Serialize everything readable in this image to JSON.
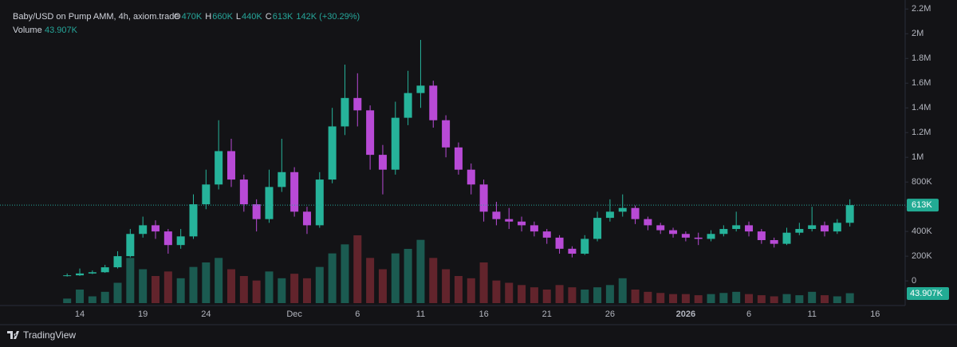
{
  "chart_data": {
    "type": "candlestick",
    "title": "Baby/USD on Pump AMM, 4h, axiom.trade",
    "ohlc_legend": [
      {
        "label": "O",
        "value": "470K"
      },
      {
        "label": "H",
        "value": "660K"
      },
      {
        "label": "L",
        "value": "440K"
      },
      {
        "label": "C",
        "value": "613K"
      }
    ],
    "change_label": "142K (+30.29%)",
    "volume_title": "Volume",
    "volume_label": "43.907K",
    "last_price_label": "613K",
    "brand": "TradingView",
    "up_color": "#26b39a",
    "down_color": "#b84ad6",
    "categories": [
      null,
      "14",
      null,
      null,
      null,
      null,
      "19",
      null,
      null,
      null,
      null,
      "24",
      null,
      null,
      null,
      null,
      null,
      null,
      "Dec",
      null,
      null,
      null,
      null,
      "6",
      null,
      null,
      null,
      null,
      "11",
      null,
      null,
      null,
      null,
      "16",
      null,
      null,
      null,
      null,
      "21",
      null,
      null,
      null,
      null,
      "26",
      null,
      null,
      null,
      null,
      null,
      "2026",
      null,
      null,
      null,
      null,
      "6",
      null,
      null,
      null,
      null,
      "11",
      null,
      null,
      null,
      null,
      "16"
    ],
    "open": [
      40000,
      45000,
      60000,
      70000,
      110000,
      200000,
      380000,
      450000,
      400000,
      290000,
      360000,
      620000,
      780000,
      1050000,
      820000,
      620000,
      500000,
      760000,
      880000,
      560000,
      450000,
      820000,
      1250000,
      1480000,
      1380000,
      1020000,
      900000,
      1320000,
      1520000,
      1580000,
      1300000,
      1080000,
      900000,
      780000,
      560000,
      500000,
      480000,
      450000,
      400000,
      350000,
      260000,
      220000,
      340000,
      510000,
      560000,
      590000,
      500000,
      450000,
      410000,
      380000,
      350000,
      340000,
      380000,
      420000,
      450000,
      400000,
      330000,
      300000,
      390000,
      420000,
      450000,
      400000,
      470000,
      null,
      null
    ],
    "high": [
      60000,
      100000,
      85000,
      130000,
      240000,
      420000,
      520000,
      490000,
      420000,
      420000,
      700000,
      900000,
      1300000,
      1150000,
      860000,
      660000,
      900000,
      1150000,
      920000,
      600000,
      880000,
      1400000,
      1750000,
      1680000,
      1420000,
      1100000,
      1450000,
      1700000,
      1950000,
      1620000,
      1340000,
      1120000,
      950000,
      820000,
      640000,
      590000,
      520000,
      480000,
      420000,
      370000,
      280000,
      370000,
      560000,
      660000,
      700000,
      610000,
      520000,
      470000,
      430000,
      400000,
      390000,
      410000,
      450000,
      560000,
      480000,
      420000,
      350000,
      430000,
      470000,
      600000,
      480000,
      500000,
      660000,
      null,
      null
    ],
    "low": [
      35000,
      40000,
      55000,
      65000,
      100000,
      190000,
      350000,
      340000,
      220000,
      260000,
      340000,
      580000,
      740000,
      760000,
      560000,
      400000,
      470000,
      720000,
      520000,
      380000,
      430000,
      790000,
      1180000,
      1250000,
      900000,
      700000,
      860000,
      1260000,
      1400000,
      1240000,
      1000000,
      860000,
      700000,
      480000,
      450000,
      420000,
      400000,
      360000,
      300000,
      220000,
      190000,
      210000,
      320000,
      480000,
      520000,
      460000,
      410000,
      380000,
      350000,
      320000,
      290000,
      320000,
      360000,
      400000,
      360000,
      300000,
      270000,
      290000,
      370000,
      400000,
      360000,
      380000,
      440000,
      null,
      null
    ],
    "close": [
      45000,
      60000,
      70000,
      110000,
      200000,
      380000,
      450000,
      400000,
      290000,
      360000,
      620000,
      780000,
      1050000,
      820000,
      620000,
      500000,
      760000,
      880000,
      560000,
      450000,
      820000,
      1250000,
      1480000,
      1380000,
      1020000,
      900000,
      1320000,
      1520000,
      1580000,
      1300000,
      1080000,
      900000,
      780000,
      560000,
      500000,
      480000,
      450000,
      400000,
      350000,
      260000,
      220000,
      340000,
      510000,
      560000,
      590000,
      500000,
      450000,
      410000,
      380000,
      350000,
      340000,
      380000,
      420000,
      450000,
      400000,
      330000,
      300000,
      390000,
      420000,
      450000,
      400000,
      470000,
      613000,
      null,
      null
    ],
    "volume": [
      20000,
      60000,
      30000,
      50000,
      90000,
      200000,
      150000,
      120000,
      140000,
      110000,
      160000,
      180000,
      200000,
      150000,
      120000,
      100000,
      140000,
      110000,
      130000,
      110000,
      160000,
      220000,
      260000,
      300000,
      200000,
      150000,
      220000,
      240000,
      280000,
      200000,
      150000,
      120000,
      110000,
      180000,
      100000,
      90000,
      80000,
      70000,
      60000,
      80000,
      70000,
      60000,
      70000,
      80000,
      110000,
      60000,
      50000,
      45000,
      40000,
      40000,
      35000,
      40000,
      45000,
      50000,
      40000,
      35000,
      30000,
      40000,
      35000,
      50000,
      35000,
      30000,
      43907,
      null,
      null
    ],
    "ylim": [
      -180000,
      2260000
    ],
    "yticks": [
      {
        "value": 0,
        "label": "0"
      },
      {
        "value": 200000,
        "label": "200K"
      },
      {
        "value": 400000,
        "label": "400K"
      },
      {
        "value": 600000,
        "label": "600K"
      },
      {
        "value": 800000,
        "label": "800K"
      },
      {
        "value": 1000000,
        "label": "1M"
      },
      {
        "value": 1200000,
        "label": "1.2M"
      },
      {
        "value": 1400000,
        "label": "1.4M"
      },
      {
        "value": 1600000,
        "label": "1.6M"
      },
      {
        "value": 1800000,
        "label": "1.8M"
      },
      {
        "value": 2000000,
        "label": "2M"
      },
      {
        "value": 2200000,
        "label": "2.2M"
      }
    ],
    "grid": false
  }
}
